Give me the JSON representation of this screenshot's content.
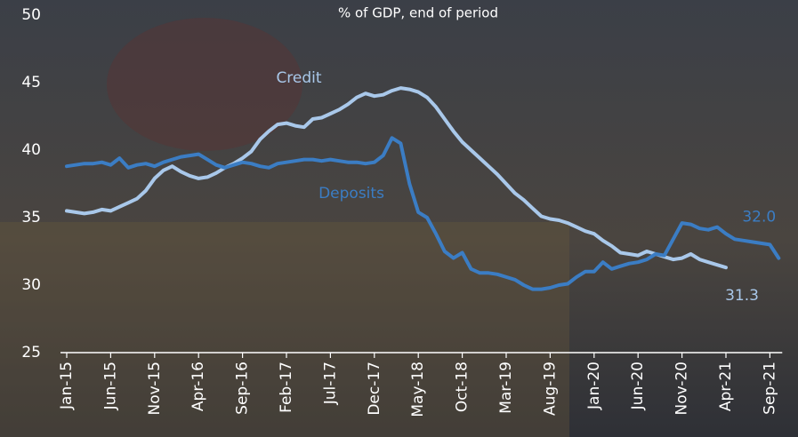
{
  "chart_data": {
    "type": "line",
    "subtitle": "% of GDP, end of period",
    "categories": [
      "Jan-15",
      null,
      null,
      null,
      null,
      "Jun-15",
      null,
      null,
      null,
      null,
      "Nov-15",
      null,
      null,
      null,
      null,
      "Apr-16",
      null,
      null,
      null,
      null,
      "Sep-16",
      null,
      null,
      null,
      null,
      "Feb-17",
      null,
      null,
      null,
      null,
      "Jul-17",
      null,
      null,
      null,
      null,
      "Dec-17",
      null,
      null,
      null,
      null,
      "May-18",
      null,
      null,
      null,
      null,
      "Oct-18",
      null,
      null,
      null,
      null,
      "Mar-19",
      null,
      null,
      null,
      null,
      "Aug-19",
      null,
      null,
      null,
      null,
      "Jan-20",
      null,
      null,
      null,
      null,
      "Jun-20",
      null,
      null,
      null,
      null,
      "Nov-20",
      null,
      null,
      null,
      null,
      "Apr-21",
      null,
      null,
      null,
      null,
      "Sep-21",
      null
    ],
    "series": [
      {
        "name": "Credit",
        "color": "#a9c8ea",
        "values": [
          35.5,
          35.4,
          35.3,
          35.4,
          35.6,
          35.5,
          35.8,
          36.1,
          36.4,
          37.0,
          37.9,
          38.5,
          38.8,
          38.4,
          38.1,
          37.9,
          38.0,
          38.3,
          38.7,
          39.0,
          39.4,
          39.9,
          40.8,
          41.4,
          41.9,
          42.0,
          41.8,
          41.7,
          42.3,
          42.4,
          42.7,
          43.0,
          43.4,
          43.9,
          44.2,
          44.0,
          44.1,
          44.4,
          44.6,
          44.5,
          44.3,
          43.9,
          43.2,
          42.3,
          41.4,
          40.6,
          40.0,
          39.4,
          38.8,
          38.2,
          37.5,
          36.8,
          36.3,
          35.7,
          35.1,
          34.9,
          34.8,
          34.6,
          34.3,
          34.0,
          33.8,
          33.3,
          32.9,
          32.4,
          32.3,
          32.2,
          32.5,
          32.3,
          32.1,
          31.9,
          32.0,
          32.3,
          31.9,
          31.7,
          31.5,
          31.3,
          null,
          null,
          null,
          null,
          null,
          null
        ],
        "value_labels": [
          null,
          null,
          null,
          null,
          null,
          null,
          null,
          null,
          null,
          null,
          null,
          null,
          null,
          null,
          null,
          null,
          null,
          null,
          null,
          null,
          null,
          null,
          null,
          null,
          null,
          null,
          null,
          null,
          null,
          null,
          null,
          null,
          null,
          null,
          null,
          null,
          null,
          null,
          null,
          null,
          null,
          null,
          null,
          null,
          null,
          null,
          null,
          null,
          null,
          null,
          null,
          null,
          null,
          null,
          null,
          null,
          null,
          null,
          null,
          null,
          null,
          null,
          null,
          null,
          null,
          null,
          null,
          null,
          null,
          null,
          null,
          null,
          null,
          null,
          null,
          "31.3",
          null,
          null,
          null,
          null,
          null,
          null
        ]
      },
      {
        "name": "Deposits",
        "color": "#3b7dc4",
        "values": [
          38.8,
          38.9,
          39.0,
          39.0,
          39.1,
          38.9,
          39.4,
          38.7,
          38.9,
          39.0,
          38.8,
          39.1,
          39.3,
          39.5,
          39.6,
          39.7,
          39.3,
          38.9,
          38.7,
          38.9,
          39.1,
          39.0,
          38.8,
          38.7,
          39.0,
          39.1,
          39.2,
          39.3,
          39.3,
          39.2,
          39.3,
          39.2,
          39.1,
          39.1,
          39.0,
          39.1,
          39.6,
          40.9,
          40.5,
          37.5,
          35.4,
          35.0,
          33.8,
          32.5,
          32.0,
          32.4,
          31.2,
          30.9,
          30.9,
          30.8,
          30.6,
          30.4,
          30.0,
          29.7,
          29.7,
          29.8,
          30.0,
          30.1,
          30.6,
          31.0,
          31.0,
          31.7,
          31.2,
          31.4,
          31.6,
          31.7,
          31.9,
          32.3,
          32.2,
          33.4,
          34.6,
          34.5,
          34.2,
          34.1,
          34.3,
          33.8,
          33.4,
          33.3,
          33.2,
          33.1,
          33.0,
          32.0
        ],
        "value_labels": [
          null,
          null,
          null,
          null,
          null,
          null,
          null,
          null,
          null,
          null,
          null,
          null,
          null,
          null,
          null,
          null,
          null,
          null,
          null,
          null,
          null,
          null,
          null,
          null,
          null,
          null,
          null,
          null,
          null,
          null,
          null,
          null,
          null,
          null,
          null,
          null,
          null,
          null,
          null,
          null,
          null,
          null,
          null,
          null,
          null,
          null,
          null,
          null,
          null,
          null,
          null,
          null,
          null,
          null,
          null,
          null,
          null,
          null,
          null,
          null,
          null,
          null,
          null,
          null,
          null,
          null,
          null,
          null,
          null,
          null,
          null,
          null,
          null,
          null,
          null,
          null,
          null,
          null,
          null,
          null,
          null,
          "32.0"
        ]
      }
    ],
    "ylim": [
      25,
      50
    ],
    "yticks": [
      25,
      30,
      35,
      40,
      45,
      50
    ]
  }
}
